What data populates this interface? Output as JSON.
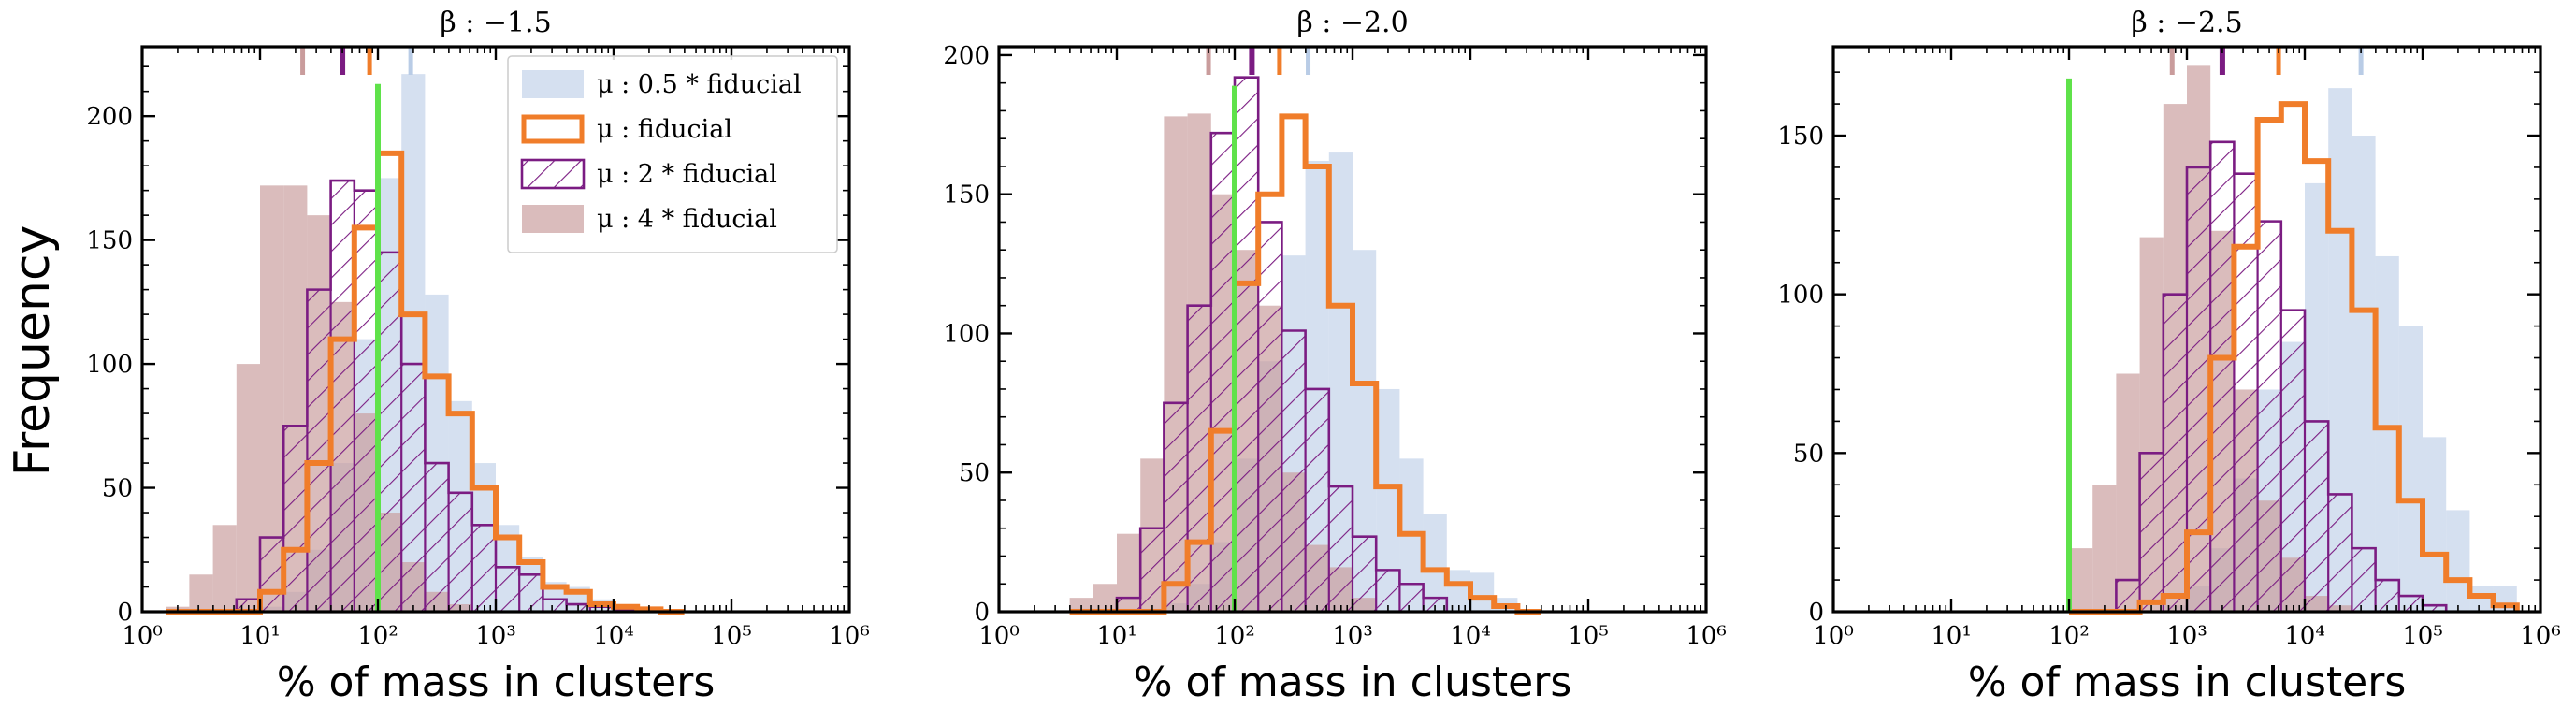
{
  "figure": {
    "ylabel": "Frequency",
    "legend_location": "upper-right of first panel",
    "colors": {
      "half": "#b9cce6",
      "fiducial": "#f07d2a",
      "double": "#7b1c82",
      "quad": "#c99c9c",
      "reference": "#5fe24a"
    },
    "series_names": [
      "μ : 0.5 * fiducial",
      "μ : fiducial",
      "μ : 2 * fiducial",
      "μ : 4 * fiducial"
    ],
    "series_styles": [
      "filled",
      "step-outline",
      "hatched-outline",
      "filled"
    ]
  },
  "chart_data": [
    {
      "type": "histogram",
      "title": "β : −1.5",
      "xlabel": "% of mass in clusters",
      "xscale": "log",
      "xlim": [
        1,
        1000000
      ],
      "ylim": [
        0,
        228
      ],
      "yticks": [
        0,
        50,
        100,
        150,
        200
      ],
      "xticks": [
        1,
        10,
        100,
        1000,
        10000,
        100000,
        1000000
      ],
      "xtick_labels": [
        "10⁰",
        "10¹",
        "10²",
        "10³",
        "10⁴",
        "10⁵",
        "10⁶"
      ],
      "bin_width_log10": 0.2,
      "vline": 100,
      "vline_height": 213,
      "bin_starts_log10": [
        0.2,
        0.4,
        0.6,
        0.8,
        1.0,
        1.2,
        1.4,
        1.6,
        1.8,
        2.0,
        2.2,
        2.4,
        2.6,
        2.8,
        3.0,
        3.2,
        3.4,
        3.6,
        3.8,
        4.0,
        4.2,
        4.4
      ],
      "series": [
        {
          "name": "μ : 0.5 * fiducial",
          "values": [
            0,
            0,
            0,
            0,
            2,
            8,
            25,
            60,
            110,
            175,
            217,
            128,
            85,
            60,
            35,
            22,
            12,
            10,
            5,
            2,
            1,
            0
          ],
          "median": 190
        },
        {
          "name": "μ : fiducial",
          "values": [
            0,
            0,
            0,
            0,
            8,
            25,
            60,
            110,
            155,
            185,
            120,
            95,
            80,
            50,
            30,
            20,
            10,
            8,
            3,
            2,
            1,
            0
          ],
          "median": 85
        },
        {
          "name": "μ : 2 * fiducial",
          "values": [
            0,
            0,
            0,
            5,
            30,
            75,
            130,
            174,
            170,
            145,
            100,
            60,
            48,
            35,
            18,
            15,
            5,
            3,
            2,
            1,
            0,
            0
          ],
          "median": 50
        },
        {
          "name": "μ : 4 * fiducial",
          "values": [
            2,
            15,
            35,
            100,
            172,
            172,
            160,
            125,
            80,
            40,
            20,
            8,
            3,
            0,
            0,
            0,
            0,
            0,
            0,
            0,
            0,
            0
          ],
          "median": 23
        }
      ]
    },
    {
      "type": "histogram",
      "title": "β : −2.0",
      "xlabel": "% of mass in clusters",
      "xscale": "log",
      "xlim": [
        1,
        1000000
      ],
      "ylim": [
        0,
        203
      ],
      "yticks": [
        0,
        50,
        100,
        150,
        200
      ],
      "xticks": [
        1,
        10,
        100,
        1000,
        10000,
        100000,
        1000000
      ],
      "xtick_labels": [
        "10⁰",
        "10¹",
        "10²",
        "10³",
        "10⁴",
        "10⁵",
        "10⁶"
      ],
      "bin_width_log10": 0.2,
      "vline": 100,
      "vline_height": 189,
      "bin_starts_log10": [
        0.6,
        0.8,
        1.0,
        1.2,
        1.4,
        1.6,
        1.8,
        2.0,
        2.2,
        2.4,
        2.6,
        2.8,
        3.0,
        3.2,
        3.4,
        3.6,
        3.8,
        4.0,
        4.2,
        4.4
      ],
      "series": [
        {
          "name": "μ : 0.5 * fiducial",
          "values": [
            0,
            0,
            0,
            0,
            3,
            10,
            25,
            55,
            90,
            128,
            162,
            165,
            130,
            80,
            55,
            35,
            15,
            14,
            5,
            0
          ],
          "median": 420
        },
        {
          "name": "μ : fiducial",
          "values": [
            0,
            0,
            0,
            0,
            10,
            25,
            65,
            118,
            150,
            178,
            160,
            110,
            82,
            45,
            28,
            15,
            10,
            5,
            2,
            0
          ],
          "median": 240
        },
        {
          "name": "μ : 2 * fiducial",
          "values": [
            0,
            0,
            5,
            30,
            75,
            110,
            172,
            192,
            140,
            101,
            80,
            45,
            27,
            15,
            10,
            5,
            0,
            0,
            0,
            0
          ],
          "median": 140
        },
        {
          "name": "μ : 4 * fiducial",
          "values": [
            5,
            10,
            28,
            55,
            178,
            179,
            150,
            130,
            110,
            50,
            24,
            16,
            5,
            0,
            0,
            0,
            0,
            0,
            0,
            0
          ],
          "median": 60
        }
      ]
    },
    {
      "type": "histogram",
      "title": "β : −2.5",
      "xlabel": "% of mass in clusters",
      "xscale": "log",
      "xlim": [
        1,
        1000000
      ],
      "ylim": [
        0,
        178
      ],
      "yticks": [
        0,
        50,
        100,
        150
      ],
      "xticks": [
        1,
        10,
        100,
        1000,
        10000,
        100000,
        1000000
      ],
      "xtick_labels": [
        "10⁰",
        "10¹",
        "10²",
        "10³",
        "10⁴",
        "10⁵",
        "10⁶"
      ],
      "bin_width_log10": 0.2,
      "vline": 100,
      "vline_height": 168,
      "bin_starts_log10": [
        2.0,
        2.2,
        2.4,
        2.6,
        2.8,
        3.0,
        3.2,
        3.4,
        3.6,
        3.8,
        4.0,
        4.2,
        4.4,
        4.6,
        4.8,
        5.0,
        5.2,
        5.4,
        5.6
      ],
      "series": [
        {
          "name": "μ : 0.5 * fiducial",
          "values": [
            0,
            0,
            0,
            0,
            2,
            8,
            20,
            42,
            70,
            85,
            135,
            165,
            150,
            112,
            90,
            55,
            32,
            8,
            8
          ],
          "median": 30000
        },
        {
          "name": "μ : fiducial",
          "values": [
            0,
            0,
            0,
            3,
            5,
            25,
            80,
            115,
            155,
            160,
            142,
            120,
            95,
            58,
            35,
            18,
            10,
            5,
            2
          ],
          "median": 6000
        },
        {
          "name": "μ : 2 * fiducial",
          "values": [
            0,
            0,
            10,
            50,
            100,
            140,
            148,
            138,
            123,
            95,
            60,
            37,
            20,
            10,
            5,
            2,
            0,
            0,
            0
          ],
          "median": 2000
        },
        {
          "name": "μ : 4 * fiducial",
          "values": [
            20,
            40,
            75,
            118,
            160,
            172,
            120,
            70,
            35,
            17,
            5,
            2,
            0,
            0,
            0,
            0,
            0,
            0,
            0
          ],
          "median": 750
        }
      ]
    }
  ]
}
